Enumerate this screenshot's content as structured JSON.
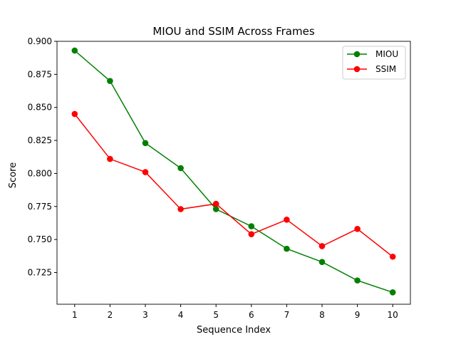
{
  "chart_data": {
    "type": "line",
    "title": "MIOU and SSIM Across Frames",
    "xlabel": "Sequence Index",
    "ylabel": "Score",
    "x": [
      1,
      2,
      3,
      4,
      5,
      6,
      7,
      8,
      9,
      10
    ],
    "xlim": [
      0.5,
      10.5
    ],
    "ylim": [
      0.701,
      0.9
    ],
    "xticks": [
      1,
      2,
      3,
      4,
      5,
      6,
      7,
      8,
      9,
      10
    ],
    "yticks": [
      0.725,
      0.75,
      0.775,
      0.8,
      0.825,
      0.85,
      0.875,
      0.9
    ],
    "ytick_labels": [
      "0.725",
      "0.750",
      "0.775",
      "0.800",
      "0.825",
      "0.850",
      "0.875",
      "0.900"
    ],
    "grid": false,
    "legend_position": "top-right",
    "series": [
      {
        "name": "MIOU",
        "color": "#008000",
        "marker": "circle",
        "values": [
          0.893,
          0.87,
          0.823,
          0.804,
          0.773,
          0.76,
          0.743,
          0.733,
          0.719,
          0.71
        ]
      },
      {
        "name": "SSIM",
        "color": "#ff0000",
        "marker": "circle",
        "values": [
          0.845,
          0.811,
          0.801,
          0.773,
          0.777,
          0.754,
          0.765,
          0.745,
          0.758,
          0.737
        ]
      }
    ]
  }
}
